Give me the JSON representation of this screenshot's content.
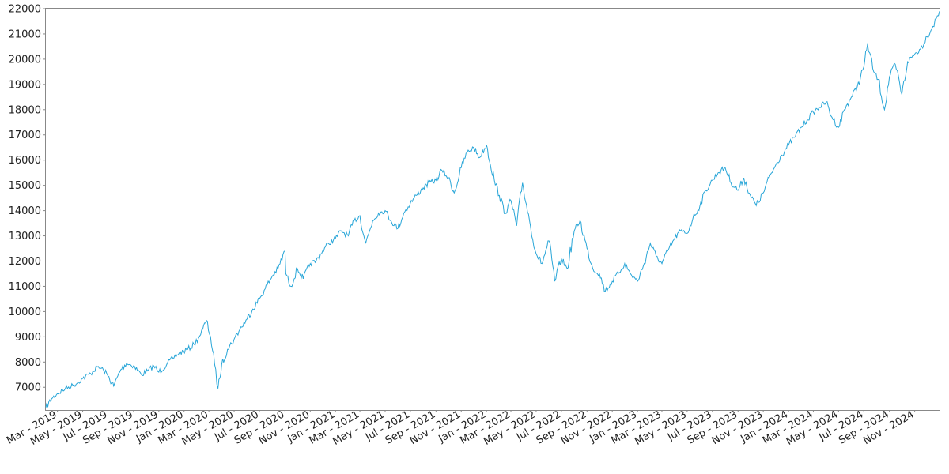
{
  "chart_data": {
    "type": "line",
    "title": "",
    "xlabel": "",
    "ylabel": "",
    "grid": false,
    "legend": "none",
    "line_color": "#29a6d8",
    "ylim": [
      6100,
      22000
    ],
    "xlim": [
      "2019-02-01",
      "2024-12-31"
    ],
    "y_ticks": [
      7000,
      8000,
      9000,
      10000,
      11000,
      12000,
      13000,
      14000,
      15000,
      16000,
      17000,
      18000,
      19000,
      20000,
      21000,
      22000
    ],
    "x_ticks": [
      {
        "date": "2019-03-01",
        "label": "Mar - 2019"
      },
      {
        "date": "2019-05-01",
        "label": "May - 2019"
      },
      {
        "date": "2019-07-01",
        "label": "Jul - 2019"
      },
      {
        "date": "2019-09-01",
        "label": "Sep - 2019"
      },
      {
        "date": "2019-11-01",
        "label": "Nov - 2019"
      },
      {
        "date": "2020-01-01",
        "label": "Jan - 2020"
      },
      {
        "date": "2020-03-01",
        "label": "Mar - 2020"
      },
      {
        "date": "2020-05-01",
        "label": "May - 2020"
      },
      {
        "date": "2020-07-01",
        "label": "Jul - 2020"
      },
      {
        "date": "2020-09-01",
        "label": "Sep - 2020"
      },
      {
        "date": "2020-11-01",
        "label": "Nov - 2020"
      },
      {
        "date": "2021-01-01",
        "label": "Jan - 2021"
      },
      {
        "date": "2021-03-01",
        "label": "Mar - 2021"
      },
      {
        "date": "2021-05-01",
        "label": "May - 2021"
      },
      {
        "date": "2021-07-01",
        "label": "Jul - 2021"
      },
      {
        "date": "2021-09-01",
        "label": "Sep - 2021"
      },
      {
        "date": "2021-11-01",
        "label": "Nov - 2021"
      },
      {
        "date": "2022-01-01",
        "label": "Jan - 2022"
      },
      {
        "date": "2022-03-01",
        "label": "Mar - 2022"
      },
      {
        "date": "2022-05-01",
        "label": "May - 2022"
      },
      {
        "date": "2022-07-01",
        "label": "Jul - 2022"
      },
      {
        "date": "2022-09-01",
        "label": "Sep - 2022"
      },
      {
        "date": "2022-11-01",
        "label": "Nov - 2022"
      },
      {
        "date": "2023-01-01",
        "label": "Jan - 2023"
      },
      {
        "date": "2023-03-01",
        "label": "Mar - 2023"
      },
      {
        "date": "2023-05-01",
        "label": "May - 2023"
      },
      {
        "date": "2023-07-01",
        "label": "Jul - 2023"
      },
      {
        "date": "2023-09-01",
        "label": "Sep - 2023"
      },
      {
        "date": "2023-11-01",
        "label": "Nov - 2023"
      },
      {
        "date": "2024-01-01",
        "label": "Jan - 2024"
      },
      {
        "date": "2024-03-01",
        "label": "Mar - 2024"
      },
      {
        "date": "2024-05-01",
        "label": "May - 2024"
      },
      {
        "date": "2024-07-01",
        "label": "Jul - 2024"
      },
      {
        "date": "2024-09-01",
        "label": "Sep - 2024"
      },
      {
        "date": "2024-11-01",
        "label": "Nov - 2024"
      }
    ],
    "series": [
      {
        "x": [
          "2019-02-01",
          "2019-02-15",
          "2019-03-01",
          "2019-03-20",
          "2019-04-10",
          "2019-05-01",
          "2019-05-20",
          "2019-06-05",
          "2019-06-20",
          "2019-07-01",
          "2019-07-15",
          "2019-08-01",
          "2019-08-15",
          "2019-09-01",
          "2019-09-20",
          "2019-10-05",
          "2019-10-20",
          "2019-11-01",
          "2019-11-20",
          "2019-12-05",
          "2019-12-20",
          "2020-01-10",
          "2020-01-25",
          "2020-02-05",
          "2020-02-15",
          "2020-02-24",
          "2020-03-05",
          "2020-03-15",
          "2020-03-23",
          "2020-04-01",
          "2020-04-15",
          "2020-05-01",
          "2020-05-15",
          "2020-06-01",
          "2020-06-15",
          "2020-07-01",
          "2020-07-15",
          "2020-08-01",
          "2020-08-15",
          "2020-09-01",
          "2020-09-03",
          "2020-09-15",
          "2020-10-01",
          "2020-10-15",
          "2020-11-01",
          "2020-11-15",
          "2020-12-01",
          "2020-12-15",
          "2021-01-01",
          "2021-01-15",
          "2021-02-01",
          "2021-02-15",
          "2021-03-01",
          "2021-03-15",
          "2021-04-01",
          "2021-04-15",
          "2021-05-01",
          "2021-05-15",
          "2021-06-01",
          "2021-06-15",
          "2021-07-01",
          "2021-07-15",
          "2021-08-01",
          "2021-08-15",
          "2021-09-01",
          "2021-09-15",
          "2021-10-01",
          "2021-10-15",
          "2021-11-01",
          "2021-11-15",
          "2021-12-01",
          "2021-12-15",
          "2022-01-01",
          "2022-01-20",
          "2022-02-01",
          "2022-02-15",
          "2022-03-01",
          "2022-03-15",
          "2022-03-29",
          "2022-04-15",
          "2022-05-01",
          "2022-05-15",
          "2022-06-01",
          "2022-06-15",
          "2022-07-01",
          "2022-07-15",
          "2022-08-01",
          "2022-08-15",
          "2022-09-01",
          "2022-09-15",
          "2022-10-01",
          "2022-10-15",
          "2022-11-01",
          "2022-11-15",
          "2022-12-01",
          "2022-12-15",
          "2023-01-01",
          "2023-01-15",
          "2023-02-01",
          "2023-02-15",
          "2023-03-01",
          "2023-03-15",
          "2023-04-01",
          "2023-04-15",
          "2023-05-01",
          "2023-05-15",
          "2023-06-01",
          "2023-06-15",
          "2023-07-01",
          "2023-07-15",
          "2023-08-01",
          "2023-08-15",
          "2023-09-01",
          "2023-09-15",
          "2023-10-01",
          "2023-10-15",
          "2023-11-01",
          "2023-11-15",
          "2023-12-01",
          "2023-12-15",
          "2024-01-01",
          "2024-01-15",
          "2024-02-01",
          "2024-02-15",
          "2024-03-01",
          "2024-03-15",
          "2024-04-01",
          "2024-04-15",
          "2024-05-01",
          "2024-05-15",
          "2024-06-01",
          "2024-06-15",
          "2024-07-01",
          "2024-07-10",
          "2024-07-25",
          "2024-08-05",
          "2024-08-20",
          "2024-09-01",
          "2024-09-15",
          "2024-10-01",
          "2024-10-15",
          "2024-11-01",
          "2024-11-15",
          "2024-12-01",
          "2024-12-15",
          "2024-12-31"
        ],
        "y": [
          6200,
          6550,
          6750,
          6950,
          7100,
          7350,
          7550,
          7800,
          7700,
          7450,
          7050,
          7700,
          7950,
          7850,
          7500,
          7650,
          7850,
          7600,
          7900,
          8150,
          8350,
          8500,
          8700,
          8950,
          9300,
          9650,
          9000,
          7900,
          6950,
          7900,
          8500,
          8900,
          9300,
          9700,
          10100,
          10500,
          10900,
          11400,
          11700,
          12400,
          11500,
          11000,
          11700,
          11300,
          11900,
          12000,
          12400,
          12700,
          12900,
          13200,
          13000,
          13600,
          13800,
          12700,
          13600,
          13900,
          14000,
          13600,
          13300,
          13900,
          14300,
          14600,
          14900,
          15100,
          15200,
          15600,
          15300,
          14700,
          15700,
          16300,
          16500,
          16100,
          16600,
          15200,
          14600,
          13900,
          14400,
          13400,
          15100,
          13600,
          12300,
          11900,
          12800,
          11200,
          12100,
          11700,
          13200,
          13600,
          12500,
          11700,
          11500,
          10800,
          11200,
          11500,
          11900,
          11500,
          11200,
          11800,
          12700,
          12200,
          11900,
          12400,
          12900,
          13200,
          13100,
          13700,
          14200,
          14800,
          15200,
          15500,
          15700,
          15100,
          14800,
          15300,
          14600,
          14200,
          14700,
          15300,
          15800,
          16200,
          16600,
          16900,
          17300,
          17600,
          17900,
          18100,
          18300,
          17700,
          17300,
          18000,
          18500,
          18900,
          19700,
          20600,
          19500,
          19200,
          18000,
          19300,
          19800,
          18600,
          19900,
          20200,
          20400,
          20900,
          21300,
          21900
        ]
      }
    ]
  }
}
